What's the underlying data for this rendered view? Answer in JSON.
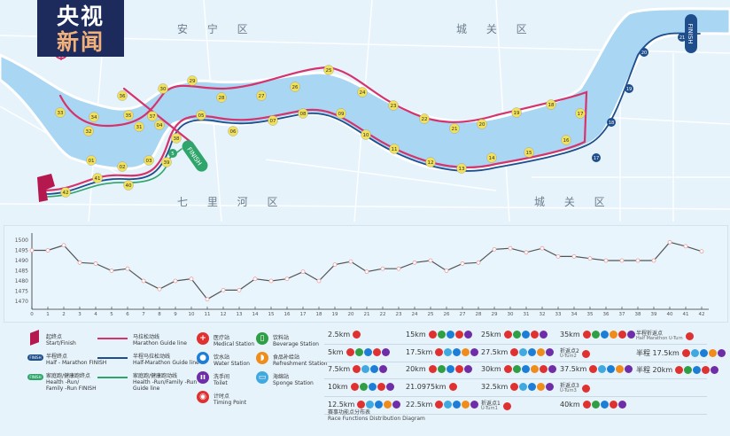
{
  "logo": {
    "line1": "央视",
    "line2": "新闻"
  },
  "districts": [
    "安 宁 区",
    "城 关 区",
    "七 里 河 区",
    "城 关 区"
  ],
  "compass": "N",
  "colors": {
    "marathon": "#d6336c",
    "half": "#1f4e8c",
    "health": "#2fa56b",
    "river": "#a9d6f3",
    "marker": "#f1e05a",
    "medical": "#e03131",
    "beverage": "#2f9e44",
    "water": "#1c7ed6",
    "sponge": "#3fa9e0",
    "refreshment": "#f08c1a",
    "timing": "#e03131",
    "toilet": "#6f2da8"
  },
  "map": {
    "marathon_markers": [
      "01",
      "02",
      "03",
      "04",
      "05",
      "06",
      "07",
      "08",
      "09",
      "10",
      "11",
      "12",
      "13",
      "14",
      "15",
      "16",
      "17",
      "18",
      "19",
      "20",
      "21",
      "22",
      "23",
      "24",
      "25",
      "26",
      "27",
      "28",
      "29",
      "30",
      "31",
      "32",
      "33",
      "34",
      "35",
      "36",
      "37",
      "38",
      "39",
      "40",
      "41",
      "42"
    ],
    "half_markers": [
      "17",
      "18",
      "19",
      "20",
      "21"
    ],
    "health_marker": "5",
    "finish_half": "FINISH",
    "finish_health": "FINISH"
  },
  "chart_data": {
    "type": "line",
    "x": [
      0,
      1,
      2,
      3,
      4,
      5,
      6,
      7,
      8,
      9,
      10,
      11,
      12,
      13,
      14,
      15,
      16,
      17,
      18,
      19,
      20,
      21,
      22,
      23,
      24,
      25,
      26,
      27,
      28,
      29,
      30,
      31,
      32,
      33,
      34,
      35,
      36,
      37,
      38,
      39,
      40,
      41,
      42
    ],
    "y": [
      1495,
      1495,
      1497.5,
      1489,
      1488.5,
      1485,
      1486,
      1480,
      1476,
      1480,
      1481,
      1471,
      1475.5,
      1475.5,
      1481,
      1480,
      1481,
      1484.5,
      1480,
      1488,
      1489.5,
      1484.5,
      1486,
      1486,
      1489,
      1490,
      1485,
      1488.5,
      1489,
      1495.5,
      1496,
      1494,
      1496,
      1492,
      1492,
      1491,
      1490,
      1490,
      1490,
      1490,
      1499,
      1497,
      1494.5
    ],
    "yticks": [
      1470,
      1475,
      1480,
      1485,
      1490,
      1495,
      1500
    ],
    "xlim": [
      0,
      42
    ],
    "ylim": [
      1467,
      1502
    ],
    "grid": false
  },
  "legend": {
    "start": {
      "cn": "起终点",
      "en": "Start/Finish"
    },
    "half_finish": {
      "badge": "FINISH",
      "cn": "半程终点",
      "en": "Half - Marathon FINISH"
    },
    "health_finish": {
      "badge": "FINISH",
      "cn": "家庭跑/健康跑终点",
      "en": "Health -Run/",
      "en2": "Family -Run FINISH"
    },
    "marathon_line": {
      "cn": "马拉松动线",
      "en": "Marathon Guide line"
    },
    "half_line": {
      "cn": "半程马拉松动线",
      "en": "Half-Marathon Guide line"
    },
    "health_line": {
      "cn": "家庭跑/健康跑动线",
      "en": "Health -Run/Family -Run",
      "en2": "Guide line"
    },
    "medical": {
      "cn": "医疗站",
      "en": "Medical Station"
    },
    "water": {
      "cn": "饮水站",
      "en": "Water Station"
    },
    "toilet": {
      "cn": "洗手间",
      "en": "Toilet"
    },
    "timing": {
      "cn": "计时点",
      "en": "Timing Point"
    },
    "beverage": {
      "cn": "饮料站",
      "en": "Beverage Station"
    },
    "refreshment": {
      "cn": "食品补给站",
      "en": "Refreshment Station"
    },
    "sponge": {
      "cn": "海绵站",
      "en": "Sponge Station"
    }
  },
  "functions": {
    "columns": [
      [
        {
          "label": "2.5km",
          "icons": [
            "medical"
          ]
        },
        {
          "label": "5km",
          "icons": [
            "medical",
            "beverage",
            "water",
            "timing",
            "toilet"
          ]
        },
        {
          "label": "7.5km",
          "icons": [
            "medical",
            "sponge",
            "water",
            "toilet"
          ]
        },
        {
          "label": "10km",
          "icons": [
            "medical",
            "beverage",
            "water",
            "timing",
            "toilet"
          ]
        },
        {
          "label": "12.5km",
          "icons": [
            "medical",
            "sponge",
            "water",
            "refreshment",
            "toilet"
          ]
        }
      ],
      [
        {
          "label": "15km",
          "icons": [
            "medical",
            "beverage",
            "water",
            "timing",
            "toilet"
          ]
        },
        {
          "label": "17.5km",
          "icons": [
            "medical",
            "sponge",
            "water",
            "refreshment",
            "toilet"
          ]
        },
        {
          "label": "20km",
          "icons": [
            "medical",
            "beverage",
            "water",
            "timing",
            "toilet"
          ]
        },
        {
          "label": "21.0975km",
          "icons": [
            "timing"
          ]
        },
        {
          "label": "22.5km",
          "icons": [
            "medical",
            "sponge",
            "water",
            "refreshment",
            "toilet"
          ]
        }
      ],
      [
        {
          "label": "25km",
          "icons": [
            "medical",
            "beverage",
            "water",
            "timing",
            "toilet"
          ]
        },
        {
          "label": "27.5km",
          "icons": [
            "medical",
            "sponge",
            "water",
            "refreshment",
            "toilet"
          ]
        },
        {
          "label": "30km",
          "icons": [
            "medical",
            "beverage",
            "water",
            "refreshment",
            "timing",
            "toilet"
          ]
        },
        {
          "label": "32.5km",
          "icons": [
            "medical",
            "sponge",
            "water",
            "refreshment",
            "toilet"
          ]
        },
        {
          "label": "折返点1",
          "sub": "U-Turn1",
          "icons": [
            "timing"
          ]
        }
      ],
      [
        {
          "label": "35km",
          "icons": [
            "medical",
            "beverage",
            "water",
            "refreshment",
            "timing",
            "toilet"
          ]
        },
        {
          "label": "折返点2",
          "sub": "U-Turn2",
          "icons": [
            "timing"
          ]
        },
        {
          "label": "37.5km",
          "icons": [
            "medical",
            "sponge",
            "water",
            "refreshment",
            "toilet"
          ]
        },
        {
          "label": "折返点3",
          "sub": "U-Turn3",
          "icons": [
            "timing"
          ]
        },
        {
          "label": "40km",
          "icons": [
            "medical",
            "beverage",
            "water",
            "timing",
            "toilet"
          ]
        }
      ],
      [
        {
          "label": "半程折返点",
          "sub": "Half Marathon U-Turn",
          "icons": [
            "timing"
          ]
        },
        {
          "label": "半程 17.5km",
          "icons": [
            "medical",
            "sponge",
            "water",
            "refreshment",
            "toilet"
          ]
        },
        {
          "label": "半程 20km",
          "icons": [
            "medical",
            "beverage",
            "water",
            "timing",
            "toilet"
          ]
        }
      ]
    ],
    "title_cn": "赛事功能点分布表",
    "title_en": "Race Functions Distribution Diagram"
  }
}
